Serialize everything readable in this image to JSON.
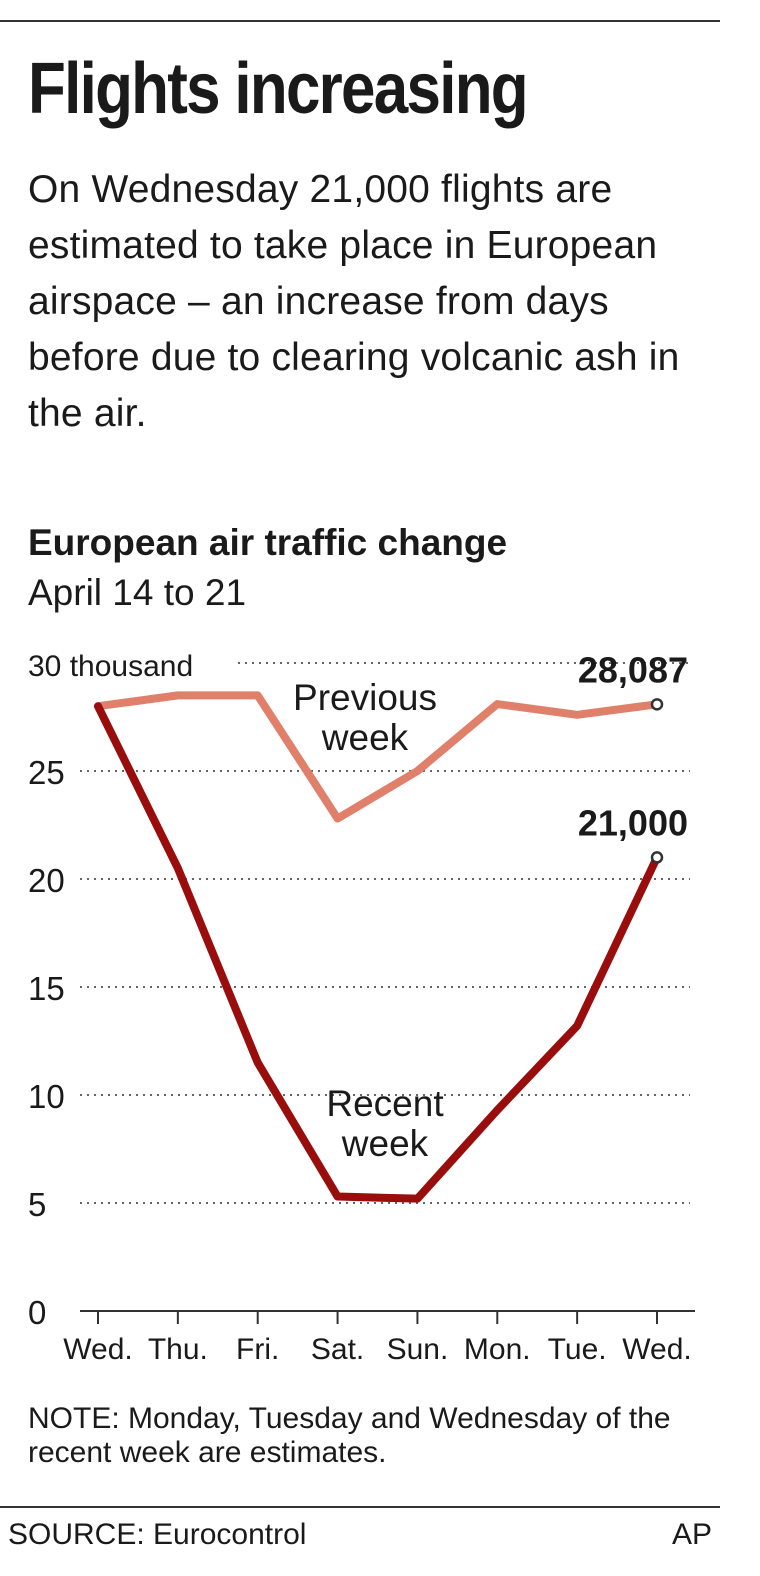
{
  "headline": "Flights increasing",
  "intro": "On Wednesday 21,000 flights are estimated to take place in European airspace – an increase from days before due to clearing volcanic ash in the air.",
  "note": "NOTE: Monday, Tuesday and Wednesday of the recent week are estimates.",
  "source": "SOURCE: Eurocontrol",
  "credit": "AP",
  "chart_data": {
    "type": "line",
    "title": "European air traffic change",
    "subtitle": "April 14 to 21",
    "xlabel": "",
    "ylabel": "",
    "y_unit_label": "30 thousand",
    "ylim": [
      0,
      30
    ],
    "yticks": [
      0,
      5,
      10,
      15,
      20,
      25,
      30
    ],
    "grid": true,
    "categories": [
      "Wed.",
      "Thu.",
      "Fri.",
      "Sat.",
      "Sun.",
      "Mon.",
      "Tue.",
      "Wed."
    ],
    "series": [
      {
        "name": "Previous week",
        "color": "#e0806a",
        "values": [
          28.0,
          28.5,
          28.5,
          22.8,
          25.0,
          28.1,
          27.6,
          28.087
        ],
        "end_label": "28,087"
      },
      {
        "name": "Recent week",
        "color": "#990d0d",
        "values": [
          28.0,
          20.5,
          11.5,
          5.3,
          5.2,
          9.3,
          13.2,
          21.0
        ],
        "end_label": "21,000"
      }
    ]
  }
}
